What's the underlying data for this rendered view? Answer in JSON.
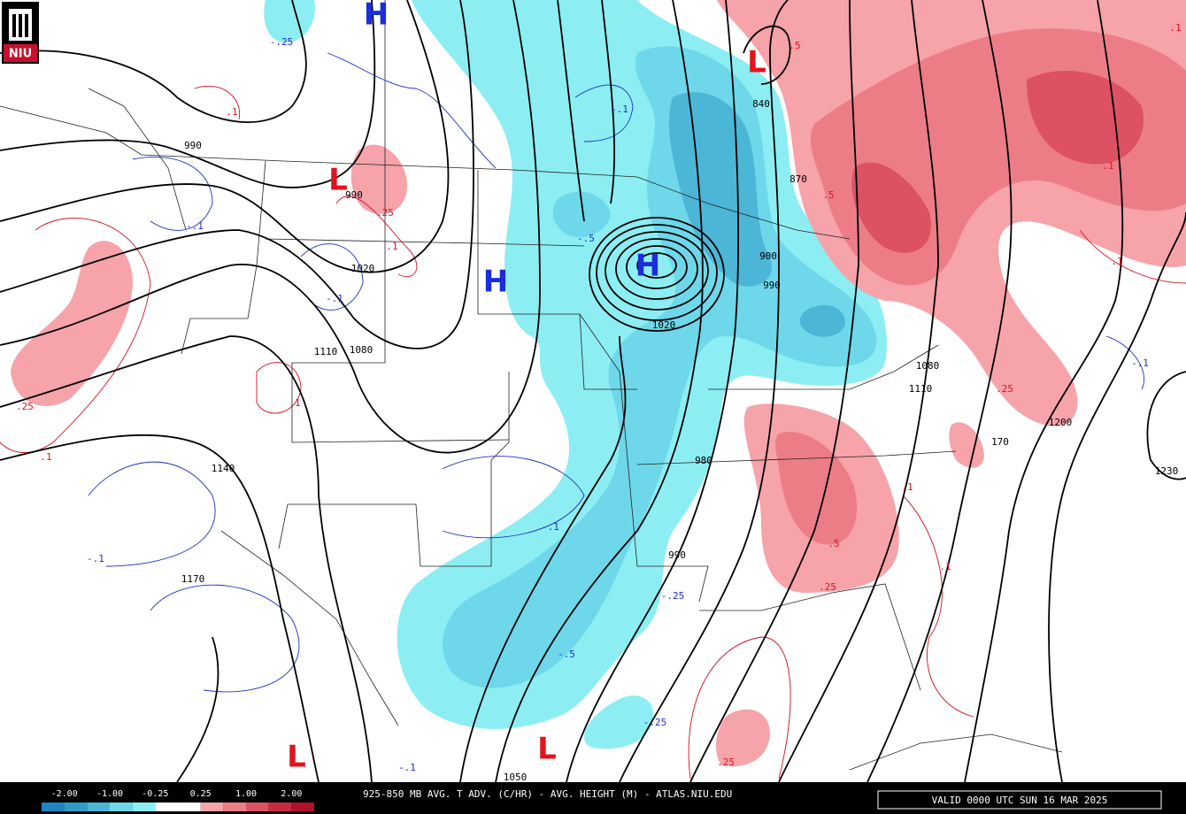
{
  "logo": "NIU",
  "centers": [
    "H",
    "L",
    "L",
    "H",
    "H",
    "L",
    "L"
  ],
  "contour_labels": [
    "-.25",
    "-.1",
    ".1",
    "990",
    ".25",
    ".1",
    "990",
    "-.1",
    "-.5",
    "1020",
    "-.1",
    "1110",
    "1080",
    ".25",
    ".1",
    ".1",
    "1140",
    "-.1",
    "-.1",
    "1170",
    "840",
    "870",
    "900",
    "990",
    "1020",
    "1080",
    "1110",
    ".25",
    "-.1",
    "1200",
    "1230",
    "170",
    ".1",
    ".5",
    ".25",
    "990",
    "980",
    "-.25",
    "-.5",
    "-.25",
    ".25",
    "-.1",
    "1050",
    ".5",
    ".5",
    ".1",
    ".1",
    ".1",
    ".1"
  ],
  "legend": {
    "labels": [
      "-2.00",
      "-1.00",
      "-0.25",
      "0.25",
      "1.00",
      "2.00"
    ]
  },
  "footer": {
    "title": "925-850 MB AVG. T ADV. (C/HR) - AVG. HEIGHT (M) - ATLAS.NIU.EDU",
    "valid": "VALID 0000 UTC SUN 16 MAR 2025"
  }
}
